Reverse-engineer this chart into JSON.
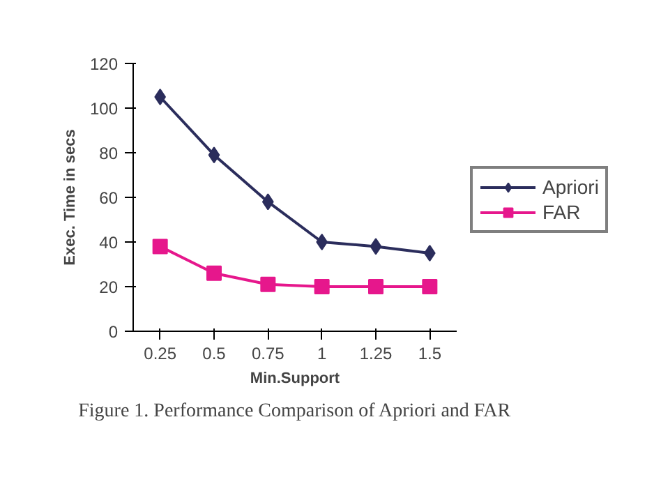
{
  "chart_data": {
    "type": "line",
    "categories": [
      "0.25",
      "0.5",
      "0.75",
      "1",
      "1.25",
      "1.5"
    ],
    "xlabel": "Min.Support",
    "ylabel": "Exec. Time in secs",
    "series": [
      {
        "name": "Apriori",
        "color": "#2b2d5c",
        "marker": "diamond",
        "values": [
          105,
          79,
          58,
          40,
          38,
          35
        ]
      },
      {
        "name": "FAR",
        "color": "#e6178c",
        "marker": "square",
        "values": [
          38,
          26,
          21,
          20,
          20,
          20
        ]
      }
    ],
    "ylim": [
      0,
      120
    ],
    "yticks": [
      0,
      20,
      40,
      60,
      80,
      100,
      120
    ],
    "legend": "right",
    "annotations": [
      "Figure 1. Performance Comparison of Apriori and FAR"
    ]
  }
}
